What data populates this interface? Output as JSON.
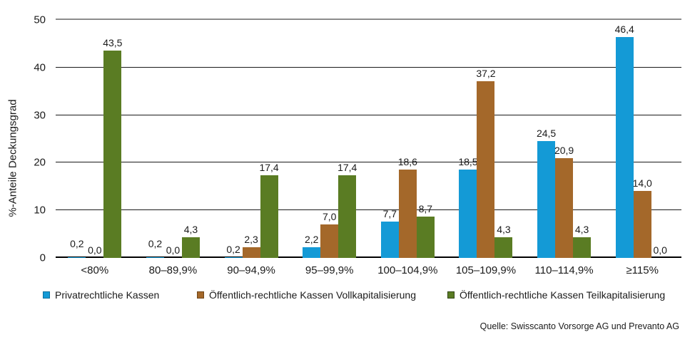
{
  "chart_data": {
    "type": "bar",
    "title": "",
    "xlabel": "",
    "ylabel": "%-Anteile Deckungsgrad",
    "ylim": [
      0,
      50
    ],
    "yticks": [
      0,
      10,
      20,
      30,
      40,
      50
    ],
    "grid": true,
    "legend_position": "bottom",
    "categories": [
      "<80%",
      "80–89,9%",
      "90–94,9%",
      "95–99,9%",
      "100–104,9%",
      "105–109,9%",
      "110–114,9%",
      "≥115%"
    ],
    "series": [
      {
        "name": "Privatrechtliche Kassen",
        "color": "#149ad6",
        "border_color": "#0d6f9d",
        "values": [
          0.2,
          0.2,
          0.2,
          2.2,
          7.7,
          18.5,
          24.5,
          46.4
        ],
        "labels": [
          "0,2",
          "0,2",
          "0,2",
          "2,2",
          "7,7",
          "18,5",
          "24,5",
          "46,4"
        ]
      },
      {
        "name": "Öffentlich-rechtliche Kassen Vollkapitalisierung",
        "color": "#a4682a",
        "border_color": "#6f4619",
        "values": [
          0.0,
          0.0,
          2.3,
          7.0,
          18.6,
          37.2,
          20.9,
          14.0
        ],
        "labels": [
          "0,0",
          "0,0",
          "2,3",
          "7,0",
          "18,6",
          "37,2",
          "20,9",
          "14,0"
        ]
      },
      {
        "name": "Öffentlich-rechtliche Kassen Teilkapitalisierung",
        "color": "#5a7c23",
        "border_color": "#324616",
        "values": [
          43.5,
          4.3,
          17.4,
          17.4,
          8.7,
          4.3,
          4.3,
          0.0
        ],
        "labels": [
          "43,5",
          "4,3",
          "17,4",
          "17,4",
          "8,7",
          "4,3",
          "4,3",
          "0,0"
        ]
      }
    ],
    "gridline_color": "#1a1a1a",
    "top_border_color": "#8c8c8c"
  },
  "source": "Quelle: Swisscanto Vorsorge AG und Prevanto AG"
}
